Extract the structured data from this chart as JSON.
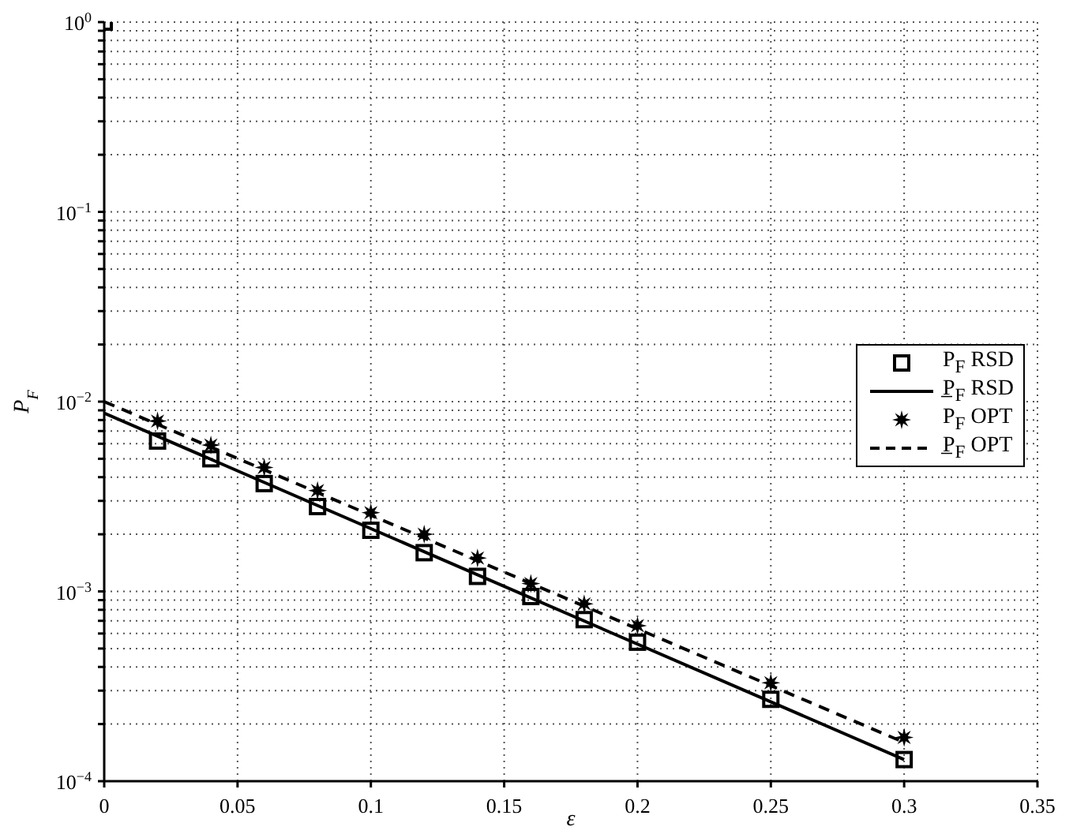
{
  "chart_data": {
    "type": "scatter",
    "xlabel": "ε",
    "ylabel": "P$_{F}$",
    "log": "y",
    "grid": true,
    "legend": "right",
    "xlim": [
      0,
      0.35
    ],
    "xticks": [
      0,
      0.05,
      0.1,
      0.15,
      0.2,
      0.25,
      0.3,
      0.35
    ],
    "ylim": [
      0.0001,
      1
    ],
    "yticks": [
      {
        "value": 0.0001,
        "label": "10$^{−4}$"
      },
      {
        "value": 0.0002,
        "label": null
      },
      {
        "value": 0.0003,
        "label": null
      },
      {
        "value": 0.0004,
        "label": null
      },
      {
        "value": 0.0005,
        "label": null
      },
      {
        "value": 0.0006,
        "label": null
      },
      {
        "value": 0.0007,
        "label": null
      },
      {
        "value": 0.0008,
        "label": null
      },
      {
        "value": 0.0009,
        "label": null
      },
      {
        "value": 0.001,
        "label": "10$^{−3}$"
      },
      {
        "value": 0.002,
        "label": null
      },
      {
        "value": 0.003,
        "label": null
      },
      {
        "value": 0.004,
        "label": null
      },
      {
        "value": 0.005,
        "label": null
      },
      {
        "value": 0.006,
        "label": null
      },
      {
        "value": 0.007,
        "label": null
      },
      {
        "value": 0.008,
        "label": null
      },
      {
        "value": 0.009,
        "label": null
      },
      {
        "value": 0.01,
        "label": "10$^{−2}$"
      },
      {
        "value": 0.02,
        "label": null
      },
      {
        "value": 0.03,
        "label": null
      },
      {
        "value": 0.04,
        "label": null
      },
      {
        "value": 0.05,
        "label": null
      },
      {
        "value": 0.06,
        "label": null
      },
      {
        "value": 0.07,
        "label": null
      },
      {
        "value": 0.08,
        "label": null
      },
      {
        "value": 0.09,
        "label": null
      },
      {
        "value": 0.1,
        "label": "10$^{−1}$"
      },
      {
        "value": 0.2,
        "label": null
      },
      {
        "value": 0.3,
        "label": null
      },
      {
        "value": 0.4,
        "label": null
      },
      {
        "value": 0.5,
        "label": null
      },
      {
        "value": 0.6,
        "label": null
      },
      {
        "value": 0.7,
        "label": null
      },
      {
        "value": 0.8,
        "label": null
      },
      {
        "value": 0.9,
        "label": null
      },
      {
        "value": 1,
        "label": "10$^{0}$"
      }
    ],
    "series": [
      {
        "name": "P$_{F}$ RSD",
        "marker": "square",
        "color": "#000000",
        "x": [
          0.02,
          0.04,
          0.06,
          0.08,
          0.1,
          0.12,
          0.14,
          0.16,
          0.18,
          0.2,
          0.25,
          0.3
        ],
        "values": [
          0.0062,
          0.005,
          0.0037,
          0.0028,
          0.0021,
          0.0016,
          0.0012,
          0.00094,
          0.00071,
          0.00054,
          0.00027,
          0.00013
        ]
      },
      {
        "name": "P̲$_{F}$ RSD",
        "type": "line",
        "marker": "none",
        "line_style": "solid",
        "color": "#000000",
        "x": [
          0,
          0.3
        ],
        "values": [
          0.0087,
          0.00013
        ]
      },
      {
        "name": "P$_{F}$ OPT",
        "marker": "star",
        "color": "#000000",
        "x": [
          0.02,
          0.04,
          0.06,
          0.08,
          0.1,
          0.12,
          0.14,
          0.16,
          0.18,
          0.2,
          0.25,
          0.3
        ],
        "values": [
          0.0079,
          0.0059,
          0.0045,
          0.0034,
          0.0026,
          0.002,
          0.0015,
          0.0011,
          0.00086,
          0.00066,
          0.00033,
          0.00017
        ]
      },
      {
        "name": "P̲$_{F}$ OPT",
        "type": "line",
        "marker": "none",
        "line_style": "dashed",
        "color": "#000000",
        "x": [
          0,
          0.3
        ],
        "values": [
          0.01,
          0.00016
        ]
      },
      {
        "marker": "square",
        "color": "#000000",
        "x": [
          0
        ],
        "values": [
          1
        ]
      }
    ]
  }
}
